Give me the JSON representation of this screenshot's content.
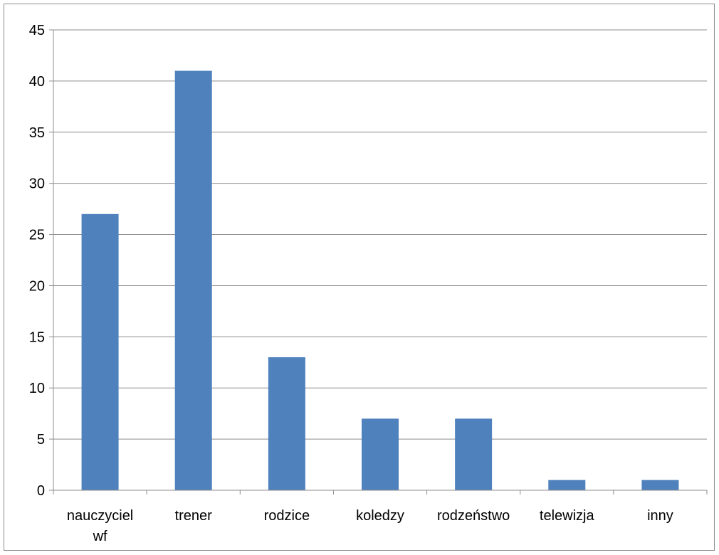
{
  "chart_data": {
    "type": "bar",
    "title": "",
    "xlabel": "",
    "ylabel": "",
    "categories": [
      [
        "nauczyciel",
        "wf"
      ],
      [
        "trener"
      ],
      [
        "rodzice"
      ],
      [
        "koledzy"
      ],
      [
        "rodzeństwo"
      ],
      [
        "telewizja"
      ],
      [
        "inny"
      ]
    ],
    "values": [
      27,
      41,
      13,
      7,
      7,
      1,
      1
    ],
    "ylim": [
      0,
      45
    ],
    "yticks": [
      0,
      5,
      10,
      15,
      20,
      25,
      30,
      35,
      40,
      45
    ],
    "grid": true,
    "legend": "none",
    "colors": {
      "bar": "#4f81bd",
      "grid": "#8c8c8c",
      "axis": "#8c8c8c",
      "text": "#000000"
    }
  }
}
